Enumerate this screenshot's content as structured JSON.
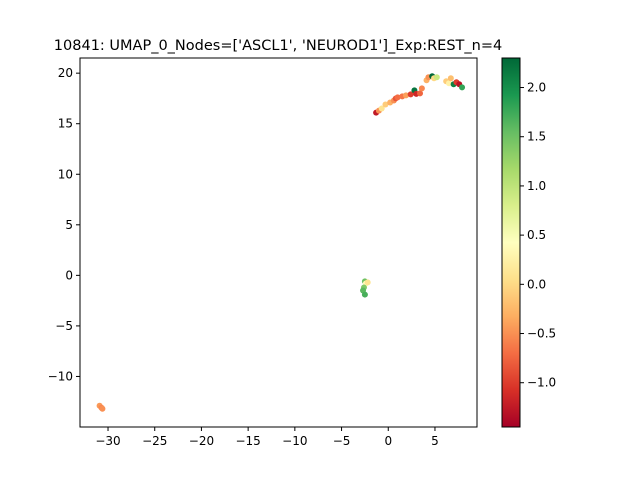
{
  "chart_data": {
    "type": "scatter",
    "title": "10841: UMAP_0_Nodes=['ASCL1', 'NEUROD1']_Exp:REST_n=4",
    "xlabel": "",
    "ylabel": "",
    "xlim": [
      -33,
      9.5
    ],
    "ylim": [
      -15,
      21.5
    ],
    "xticks": [
      -30,
      -25,
      -20,
      -15,
      -10,
      -5,
      0,
      5
    ],
    "yticks": [
      -10,
      -5,
      0,
      5,
      10,
      15,
      20
    ],
    "grid": false,
    "colorbar": {
      "colormap": "RdYlGn",
      "vmin": -1.45,
      "vmax": 2.3,
      "ticks": [
        -1.0,
        -0.5,
        0.0,
        0.5,
        1.0,
        1.5,
        2.0
      ],
      "tick_labels": [
        "−1.0",
        "−0.5",
        "0.0",
        "0.5",
        "1.0",
        "1.5",
        "2.0"
      ],
      "position": "right"
    },
    "points": [
      {
        "x": -30.9,
        "y": -12.9,
        "c": -0.45
      },
      {
        "x": -30.7,
        "y": -13.1,
        "c": -0.55
      },
      {
        "x": -30.6,
        "y": -13.2,
        "c": -0.5
      },
      {
        "x": -2.5,
        "y": -0.6,
        "c": 1.5
      },
      {
        "x": -2.4,
        "y": -0.8,
        "c": 0.35
      },
      {
        "x": -2.6,
        "y": -1.2,
        "c": 1.4
      },
      {
        "x": -2.7,
        "y": -1.5,
        "c": 1.6
      },
      {
        "x": -2.5,
        "y": -1.9,
        "c": 1.7
      },
      {
        "x": -2.2,
        "y": -0.7,
        "c": 0.1
      },
      {
        "x": -1.3,
        "y": 16.1,
        "c": -1.25
      },
      {
        "x": -1.0,
        "y": 16.3,
        "c": -0.5
      },
      {
        "x": -0.7,
        "y": 16.5,
        "c": 0.1
      },
      {
        "x": -0.3,
        "y": 16.9,
        "c": -0.1
      },
      {
        "x": 0.2,
        "y": 17.1,
        "c": -0.3
      },
      {
        "x": 0.6,
        "y": 17.3,
        "c": -0.5
      },
      {
        "x": 0.8,
        "y": 17.5,
        "c": -0.85
      },
      {
        "x": 1.0,
        "y": 17.6,
        "c": -0.7
      },
      {
        "x": 1.5,
        "y": 17.7,
        "c": -0.65
      },
      {
        "x": 1.9,
        "y": 17.8,
        "c": -0.4
      },
      {
        "x": 2.4,
        "y": 17.9,
        "c": -1.0
      },
      {
        "x": 2.8,
        "y": 18.3,
        "c": 2.2
      },
      {
        "x": 3.0,
        "y": 17.95,
        "c": -1.15
      },
      {
        "x": 3.4,
        "y": 18.0,
        "c": -0.75
      },
      {
        "x": 3.6,
        "y": 18.5,
        "c": -0.55
      },
      {
        "x": 4.1,
        "y": 19.3,
        "c": -0.3
      },
      {
        "x": 4.3,
        "y": 19.6,
        "c": -0.5
      },
      {
        "x": 4.7,
        "y": 19.7,
        "c": 2.3
      },
      {
        "x": 4.9,
        "y": 19.5,
        "c": 0.0
      },
      {
        "x": 5.2,
        "y": 19.6,
        "c": 0.9
      },
      {
        "x": 6.2,
        "y": 19.2,
        "c": -0.1
      },
      {
        "x": 6.5,
        "y": 19.0,
        "c": 0.25
      },
      {
        "x": 6.7,
        "y": 19.5,
        "c": -0.2
      },
      {
        "x": 7.0,
        "y": 18.9,
        "c": 2.1
      },
      {
        "x": 7.3,
        "y": 19.1,
        "c": -1.0
      },
      {
        "x": 7.6,
        "y": 18.9,
        "c": -1.3
      },
      {
        "x": 7.9,
        "y": 18.6,
        "c": 1.8
      }
    ]
  }
}
